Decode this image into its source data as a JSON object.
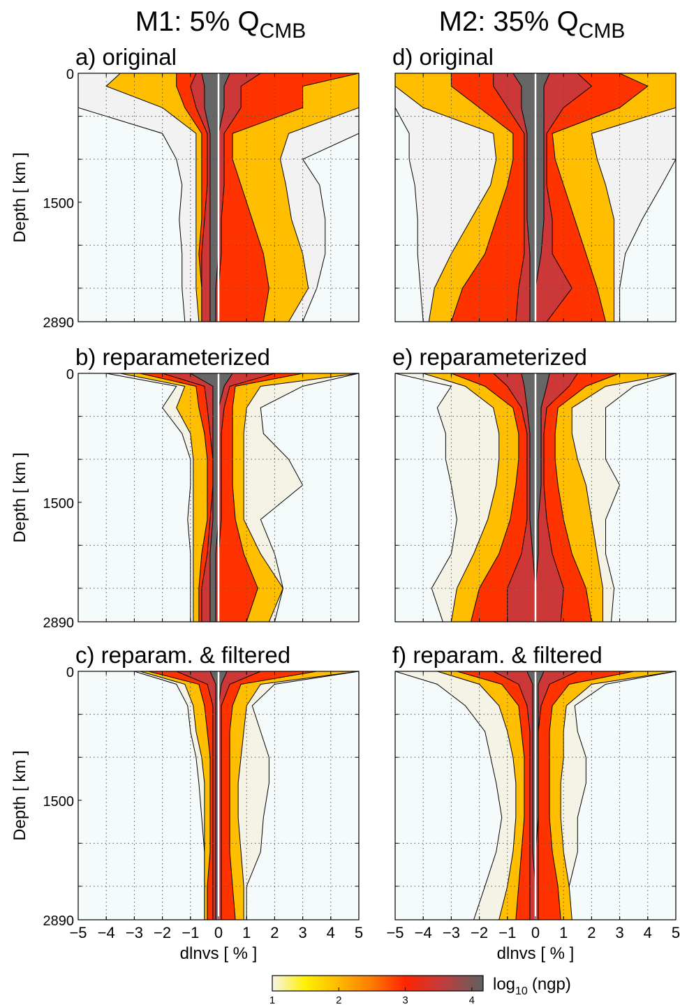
{
  "columns": [
    {
      "title": "M1:   5% Q",
      "title_sub": "CMB"
    },
    {
      "title": "M2:   35% Q",
      "title_sub": "CMB"
    }
  ],
  "colorbar": {
    "label": "log",
    "label_sub": "10",
    "label_tail": "(ngp)",
    "clim": [
      1,
      4.17
    ],
    "ticks": [
      1,
      2,
      3,
      4
    ],
    "cmap": [
      {
        "value": 1,
        "color": "#f6f4ea"
      },
      {
        "value": 1.5,
        "color": "#fff000"
      },
      {
        "value": 2,
        "color": "#ffb800"
      },
      {
        "value": 2.5,
        "color": "#ff7a00"
      },
      {
        "value": 3,
        "color": "#ff2400"
      },
      {
        "value": 3.5,
        "color": "#c93a3a"
      },
      {
        "value": 4.17,
        "color": "#606060"
      }
    ]
  },
  "chart_data": [
    {
      "type": "contour",
      "title": "a) original",
      "ylabel": "Depth [ km ]",
      "xlim": [
        -5,
        5
      ],
      "ylim": [
        0,
        2890
      ],
      "y_inverted": true,
      "background": "#f5fbfb",
      "xgrid": [
        -4,
        -3,
        -2,
        -1,
        1,
        2,
        3,
        4
      ],
      "ygrid": [
        500,
        1000,
        2000,
        2500
      ],
      "yticks": [
        0,
        1500,
        2890
      ],
      "y": [
        0,
        150,
        400,
        700,
        1000,
        1300,
        1700,
        2100,
        2500,
        2890
      ],
      "series": [
        {
          "color": "#f2f2f2",
          "left": [
            -5,
            -5,
            -5,
            -2.0,
            -1.5,
            -1.3,
            -1.4,
            -1.3,
            -1.3,
            -1.2
          ],
          "right": [
            5,
            5,
            5,
            5,
            3.0,
            3.6,
            3.8,
            3.8,
            3.5,
            3.0
          ]
        },
        {
          "color": "#ffbf00",
          "left": [
            -3.5,
            -4,
            -2,
            -0.8,
            -0.8,
            -0.8,
            -0.8,
            -0.8,
            -0.8,
            -0.7
          ],
          "right": [
            5,
            5,
            5,
            2.5,
            2.2,
            2.4,
            2.6,
            3.0,
            3.2,
            2.5
          ]
        },
        {
          "color": "#ff3300",
          "left": [
            -1.5,
            -1.5,
            -1.2,
            -0.6,
            -0.6,
            -0.6,
            -0.6,
            -0.7,
            -0.6,
            -0.6
          ],
          "right": [
            5,
            3,
            3,
            0.5,
            0.5,
            0.8,
            1.2,
            1.6,
            1.8,
            1.6
          ]
        },
        {
          "color": "#cc3838",
          "left": [
            -0.8,
            -1,
            -0.8,
            -0.4,
            -0.4,
            -0.4,
            -0.5,
            -0.6,
            -0.6,
            -0.6
          ],
          "right": [
            1.5,
            0.8,
            0.8,
            0.2,
            0.2,
            0.2,
            0.1,
            0.1,
            0,
            0
          ]
        },
        {
          "color": "#666666",
          "left": [
            -0.6,
            -0.5,
            -0.5,
            -0.3,
            -0.3,
            -0.3,
            -0.3,
            -0.3,
            -0.3,
            -0.3
          ],
          "right": [
            0.4,
            0.2,
            0.2,
            0,
            0,
            0,
            0,
            0,
            -0.1,
            -0.1
          ]
        }
      ]
    },
    {
      "type": "contour",
      "title": "d) original",
      "xlim": [
        -5,
        5
      ],
      "ylim": [
        0,
        2890
      ],
      "y_inverted": true,
      "background": "#f5fbfb",
      "xgrid": [
        -4,
        -3,
        -2,
        -1,
        1,
        2,
        3,
        4
      ],
      "ygrid": [
        500,
        1000,
        2000,
        2500
      ],
      "y": [
        0,
        150,
        400,
        700,
        1000,
        1300,
        1700,
        2100,
        2500,
        2890
      ],
      "series": [
        {
          "color": "#f2f2f2",
          "left": [
            -5,
            -5,
            -5,
            -4.5,
            -4.5,
            -4.3,
            -4.2,
            -4.2,
            -4.1,
            -4.0
          ],
          "right": [
            5,
            5,
            5,
            5,
            5,
            4.5,
            3.8,
            3.2,
            3.0,
            3.0
          ]
        },
        {
          "color": "#ffbf00",
          "left": [
            -5,
            -5,
            -4,
            -1.5,
            -1.4,
            -1.6,
            -2.3,
            -3.0,
            -3.6,
            -3.8
          ],
          "right": [
            5,
            5,
            5,
            2.0,
            2.2,
            2.5,
            2.8,
            2.8,
            2.8,
            2.8
          ]
        },
        {
          "color": "#ff3300",
          "left": [
            -3,
            -3,
            -2,
            -0.8,
            -0.8,
            -1.0,
            -1.4,
            -1.8,
            -2.6,
            -3.0
          ],
          "right": [
            3,
            4,
            3,
            0.6,
            0.7,
            1.0,
            1.4,
            1.8,
            2.2,
            2.5
          ]
        },
        {
          "color": "#cc3838",
          "left": [
            -1.5,
            -1.5,
            -1,
            -0.4,
            -0.4,
            -0.4,
            -0.4,
            -0.4,
            -0.6,
            -0.7
          ],
          "right": [
            1.5,
            2,
            1,
            0.4,
            0.4,
            0.4,
            0.6,
            0.6,
            1.3,
            0.4
          ]
        },
        {
          "color": "#666666",
          "left": [
            -0.8,
            -0.5,
            -0.5,
            -0.3,
            -0.3,
            -0.3,
            -0.3,
            -0.2,
            -0.2,
            -0.2
          ],
          "right": [
            0.5,
            0.3,
            0.3,
            0.3,
            0.3,
            0.3,
            0.3,
            0.2,
            0,
            0
          ]
        }
      ]
    },
    {
      "type": "contour",
      "title": "b) reparameterized",
      "ylabel": "Depth [ km ]",
      "xlim": [
        -5,
        5
      ],
      "ylim": [
        0,
        2890
      ],
      "y_inverted": true,
      "background": "#f5fbfb",
      "xgrid": [
        -4,
        -3,
        -2,
        -1,
        1,
        2,
        3,
        4
      ],
      "ygrid": [
        500,
        1000,
        2000,
        2500
      ],
      "yticks": [
        0,
        1500,
        2890
      ],
      "y": [
        0,
        150,
        400,
        700,
        1000,
        1300,
        1700,
        2100,
        2500,
        2890
      ],
      "series": [
        {
          "color": "#f5f3e6",
          "left": [
            -4,
            -1.5,
            -2.0,
            -1.3,
            -1.0,
            -1.0,
            -1.1,
            -1.0,
            -1.0,
            -1.0
          ],
          "right": [
            5,
            3.0,
            1.5,
            1.6,
            2.5,
            3.0,
            1.5,
            2.0,
            2.3,
            2.0
          ]
        },
        {
          "color": "#ffbf00",
          "left": [
            -3.5,
            -1.2,
            -1.5,
            -1.0,
            -0.9,
            -0.9,
            -0.9,
            -0.9,
            -0.9,
            -0.9
          ],
          "right": [
            5,
            1.5,
            1.0,
            0.9,
            0.9,
            0.9,
            0.9,
            1.5,
            2.3,
            1.8
          ]
        },
        {
          "color": "#ff3300",
          "left": [
            -2.8,
            -0.8,
            -0.7,
            -0.5,
            -0.4,
            -0.4,
            -0.4,
            -0.6,
            -0.7,
            -0.7
          ],
          "right": [
            3,
            0.6,
            0.5,
            0.5,
            0.5,
            0.5,
            0.6,
            0.9,
            1.4,
            1.0
          ]
        },
        {
          "color": "#cc3838",
          "left": [
            -2,
            -0.5,
            -0.4,
            -0.3,
            -0.2,
            -0.2,
            -0.3,
            -0.4,
            -0.6,
            -0.6
          ],
          "right": [
            2,
            0.4,
            0.2,
            0.1,
            0.1,
            0.1,
            0.1,
            0,
            0,
            0
          ]
        },
        {
          "color": "#666666",
          "left": [
            -1,
            -0.2,
            -0.2,
            -0.2,
            -0.2,
            -0.2,
            -0.2,
            -0.3,
            -0.3,
            -0.3
          ],
          "right": [
            0.5,
            0.2,
            0,
            0,
            0,
            0,
            0,
            -0.1,
            -0.1,
            -0.1
          ]
        }
      ]
    },
    {
      "type": "contour",
      "title": "e) reparameterized",
      "xlim": [
        -5,
        5
      ],
      "ylim": [
        0,
        2890
      ],
      "y_inverted": true,
      "background": "#f5fbfb",
      "xgrid": [
        -4,
        -3,
        -2,
        -1,
        1,
        2,
        3,
        4
      ],
      "ygrid": [
        500,
        1000,
        2000,
        2500
      ],
      "y": [
        0,
        150,
        400,
        700,
        1000,
        1300,
        1700,
        2100,
        2500,
        2890
      ],
      "series": [
        {
          "color": "#f5f3e6",
          "left": [
            -5,
            -3,
            -3.5,
            -3.2,
            -3.2,
            -3.0,
            -2.8,
            -3,
            -3.7,
            -3.3
          ],
          "right": [
            5,
            3.5,
            2.5,
            2.5,
            2.5,
            3.0,
            2.5,
            2.5,
            2.8,
            2.7
          ]
        },
        {
          "color": "#ffbf00",
          "left": [
            -4,
            -2.5,
            -1.5,
            -1.3,
            -1.3,
            -1.4,
            -1.7,
            -2.2,
            -2.8,
            -3.0
          ],
          "right": [
            5,
            2.5,
            1.3,
            1.3,
            1.5,
            1.8,
            2.0,
            2.2,
            2.4,
            2.4
          ]
        },
        {
          "color": "#ff3300",
          "left": [
            -3,
            -1.8,
            -0.8,
            -0.6,
            -0.6,
            -0.7,
            -0.9,
            -1.3,
            -2.0,
            -2.3
          ],
          "right": [
            3,
            1.8,
            0.8,
            0.7,
            0.7,
            0.8,
            1.0,
            1.3,
            1.8,
            2.0
          ]
        },
        {
          "color": "#cc3838",
          "left": [
            -1.5,
            -1,
            -0.5,
            -0.3,
            -0.3,
            -0.3,
            -0.3,
            -0.5,
            -1.0,
            -1.0
          ],
          "right": [
            1.5,
            1.2,
            0.4,
            0.3,
            0.3,
            0.3,
            0.4,
            0.6,
            1.0,
            0.9
          ]
        },
        {
          "color": "#666666",
          "left": [
            -0.5,
            -0.4,
            -0.3,
            -0.2,
            -0.2,
            -0.2,
            -0.2,
            -0.1,
            0,
            0
          ],
          "right": [
            0.5,
            0.4,
            0.2,
            0.2,
            0.2,
            0.2,
            0.1,
            0.1,
            0,
            0
          ]
        }
      ]
    },
    {
      "type": "contour",
      "title": "c) reparam. & filtered",
      "ylabel": "Depth [ km ]",
      "xlabel": "dlnvs [ % ]",
      "xlim": [
        -5,
        5
      ],
      "ylim": [
        0,
        2890
      ],
      "y_inverted": true,
      "background": "#f5fbfb",
      "xgrid": [
        -4,
        -3,
        -2,
        -1,
        1,
        2,
        3,
        4
      ],
      "ygrid": [
        500,
        1000,
        2000,
        2500
      ],
      "yticks": [
        0,
        1500,
        2890
      ],
      "xticks": [
        {
          "value": -5,
          "label": "−5"
        },
        {
          "value": -4,
          "label": "−4"
        },
        {
          "value": -3,
          "label": "−3"
        },
        {
          "value": -2,
          "label": "−2"
        },
        {
          "value": -1,
          "label": "−1"
        },
        0,
        1,
        2,
        3,
        4,
        5
      ],
      "y": [
        0,
        150,
        400,
        700,
        1000,
        1300,
        1700,
        2100,
        2500,
        2890
      ],
      "series": [
        {
          "color": "#f5f3e6",
          "left": [
            -3,
            -1.5,
            -1.1,
            -1.0,
            -0.8,
            -0.7,
            -0.6,
            -0.5,
            -0.5,
            -0.5
          ],
          "right": [
            5,
            2.0,
            1.2,
            1.5,
            1.8,
            1.8,
            1.6,
            1.5,
            1.0,
            1.0
          ]
        },
        {
          "color": "#ffbf00",
          "left": [
            -2.8,
            -1.2,
            -0.9,
            -0.8,
            -0.6,
            -0.5,
            -0.5,
            -0.5,
            -0.5,
            -0.5
          ],
          "right": [
            5,
            1.5,
            1.0,
            0.9,
            0.8,
            0.7,
            0.7,
            0.8,
            0.9,
            0.9
          ]
        },
        {
          "color": "#ff3300",
          "left": [
            -2.5,
            -0.7,
            -0.5,
            -0.4,
            -0.3,
            -0.3,
            -0.3,
            -0.3,
            -0.4,
            -0.4
          ],
          "right": [
            3.5,
            0.8,
            0.5,
            0.4,
            0.4,
            0.4,
            0.4,
            0.4,
            0.5,
            0.6
          ]
        },
        {
          "color": "#cc3838",
          "left": [
            -1.5,
            -0.4,
            -0.2,
            -0.2,
            -0.2,
            -0.2,
            -0.2,
            -0.2,
            -0.2,
            -0.2
          ],
          "right": [
            1.5,
            0.4,
            0.1,
            0.1,
            0.1,
            0.1,
            0.1,
            0.1,
            0.1,
            0.1
          ]
        },
        {
          "color": "#666666",
          "left": [
            -0.3,
            -0.1,
            -0.1,
            -0.1,
            -0.1,
            -0.1,
            -0.1,
            -0.1,
            -0.1,
            -0.1
          ],
          "right": [
            0.3,
            0.1,
            0,
            0,
            0,
            0,
            0,
            0,
            0,
            0
          ]
        }
      ]
    },
    {
      "type": "contour",
      "title": "f) reparam. & filtered",
      "xlabel": "dlnvs [ % ]",
      "xlim": [
        -5,
        5
      ],
      "ylim": [
        0,
        2890
      ],
      "y_inverted": true,
      "background": "#f5fbfb",
      "xgrid": [
        -4,
        -3,
        -2,
        -1,
        1,
        2,
        3,
        4
      ],
      "ygrid": [
        500,
        1000,
        2000,
        2500
      ],
      "xticks": [
        {
          "value": -5,
          "label": "−5"
        },
        {
          "value": -4,
          "label": "−4"
        },
        {
          "value": -3,
          "label": "−3"
        },
        {
          "value": -2,
          "label": "−2"
        },
        {
          "value": -1,
          "label": "−1"
        },
        0,
        1,
        2,
        3,
        4,
        5
      ],
      "y": [
        0,
        150,
        400,
        700,
        1000,
        1300,
        1700,
        2100,
        2500,
        2890
      ],
      "series": [
        {
          "color": "#f5f3e6",
          "left": [
            -5,
            -3.5,
            -2.5,
            -1.8,
            -1.6,
            -1.4,
            -1.2,
            -1.4,
            -1.8,
            -2.2
          ],
          "right": [
            5,
            2.5,
            1.4,
            1.5,
            1.8,
            1.8,
            1.5,
            1.5,
            1.2,
            1.2
          ]
        },
        {
          "color": "#ffbf00",
          "left": [
            -3.5,
            -2,
            -1.3,
            -1.0,
            -0.8,
            -0.7,
            -0.7,
            -0.8,
            -1.0,
            -1.3
          ],
          "right": [
            5,
            2,
            1.1,
            1.0,
            1.0,
            0.9,
            0.9,
            1.0,
            1.2,
            1.3
          ]
        },
        {
          "color": "#ff3300",
          "left": [
            -2.8,
            -1.2,
            -0.6,
            -0.5,
            -0.4,
            -0.4,
            -0.4,
            -0.5,
            -0.6,
            -0.7
          ],
          "right": [
            3.5,
            1.2,
            0.6,
            0.5,
            0.5,
            0.5,
            0.5,
            0.6,
            0.8,
            0.9
          ]
        },
        {
          "color": "#cc3838",
          "left": [
            -1.5,
            -0.6,
            -0.3,
            -0.2,
            -0.2,
            -0.2,
            -0.2,
            -0.2,
            -0.2,
            -0.2
          ],
          "right": [
            1.5,
            0.5,
            0.2,
            0.1,
            0.1,
            0.1,
            0.1,
            0.1,
            0.1,
            0.1
          ]
        },
        {
          "color": "#666666",
          "left": [
            -0.3,
            -0.1,
            -0.1,
            -0.1,
            -0.1,
            -0.1,
            -0.1,
            -0.1,
            0,
            0
          ],
          "right": [
            0.3,
            0.1,
            0.1,
            0.1,
            0.1,
            0.1,
            0.1,
            0,
            0,
            0
          ]
        }
      ]
    }
  ]
}
